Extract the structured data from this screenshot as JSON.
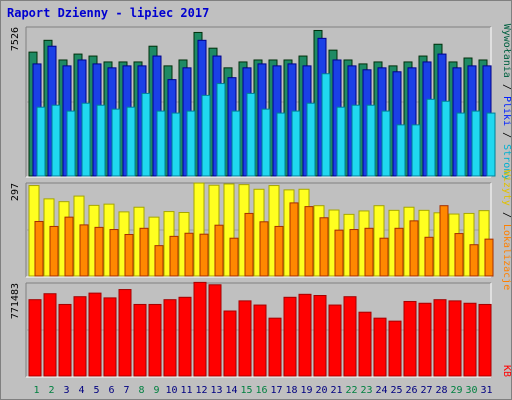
{
  "title": "Raport Dzienny -  lipiec 2017",
  "right_legend": {
    "top": {
      "parts": [
        {
          "text": "Wywołania",
          "color": "#006040"
        },
        {
          "text": " / ",
          "color": "#000000"
        },
        {
          "text": "Pliki",
          "color": "#0020ff"
        },
        {
          "text": " / ",
          "color": "#000000"
        },
        {
          "text": "Strony",
          "color": "#00b0d0"
        }
      ]
    },
    "middle": {
      "parts": [
        {
          "text": "Wizyty",
          "color": "#e0c000"
        },
        {
          "text": " / ",
          "color": "#000000"
        },
        {
          "text": "Lokalizacje",
          "color": "#ff8000"
        }
      ]
    },
    "bottom": {
      "parts": [
        {
          "text": "KB",
          "color": "#ff0000"
        }
      ]
    }
  },
  "chart_data": [
    {
      "type": "bar",
      "name": "top",
      "ymax_label": "7526",
      "ylim": [
        0,
        7526
      ],
      "categories": [
        "1",
        "2",
        "3",
        "4",
        "5",
        "6",
        "7",
        "8",
        "9",
        "10",
        "11",
        "12",
        "13",
        "14",
        "15",
        "16",
        "17",
        "18",
        "19",
        "20",
        "21",
        "22",
        "23",
        "24",
        "25",
        "26",
        "27",
        "28",
        "29",
        "30",
        "31"
      ],
      "series": [
        {
          "name": "Wywołania",
          "color": "#1e8a64",
          "values": [
            6300,
            6900,
            5900,
            6200,
            6100,
            5800,
            5800,
            5800,
            6600,
            5600,
            5900,
            7300,
            6500,
            5500,
            5800,
            5900,
            5900,
            5900,
            6100,
            7400,
            6400,
            5900,
            5700,
            5800,
            5600,
            5800,
            6100,
            6700,
            5800,
            6000,
            5900
          ]
        },
        {
          "name": "Pliki",
          "color": "#1a40e6",
          "values": [
            5700,
            6600,
            5600,
            5900,
            5700,
            5500,
            5600,
            5600,
            6100,
            4900,
            5500,
            6900,
            6100,
            5000,
            5500,
            5700,
            5600,
            5700,
            5600,
            7000,
            5900,
            5600,
            5400,
            5500,
            5300,
            5500,
            5800,
            6200,
            5500,
            5600,
            5600
          ]
        },
        {
          "name": "Strony",
          "color": "#20d8f0",
          "values": [
            3500,
            3600,
            3300,
            3700,
            3600,
            3400,
            3500,
            4200,
            3300,
            3200,
            3300,
            4100,
            4700,
            3300,
            4200,
            3400,
            3200,
            3300,
            3700,
            5200,
            3500,
            3600,
            3600,
            3300,
            2600,
            2600,
            3900,
            3800,
            3200,
            3300,
            3200
          ]
        }
      ]
    },
    {
      "type": "bar",
      "name": "middle",
      "ymax_label": "297",
      "ylim": [
        0,
        297
      ],
      "categories": [
        "1",
        "2",
        "3",
        "4",
        "5",
        "6",
        "7",
        "8",
        "9",
        "10",
        "11",
        "12",
        "13",
        "14",
        "15",
        "16",
        "17",
        "18",
        "19",
        "20",
        "21",
        "22",
        "23",
        "24",
        "25",
        "26",
        "27",
        "28",
        "29",
        "30",
        "31"
      ],
      "series": [
        {
          "name": "Wizyty",
          "color": "#ffff20",
          "values": [
            292,
            249,
            240,
            258,
            228,
            232,
            207,
            222,
            190,
            208,
            205,
            300,
            293,
            297,
            295,
            280,
            292,
            278,
            280,
            227,
            213,
            199,
            210,
            227,
            212,
            222,
            212,
            204,
            200,
            202,
            211
          ]
        },
        {
          "name": "Lokalizacje",
          "color": "#ff8800",
          "values": [
            176,
            160,
            190,
            165,
            157,
            150,
            134,
            154,
            98,
            128,
            138,
            135,
            164,
            122,
            202,
            175,
            160,
            236,
            224,
            188,
            148,
            150,
            154,
            122,
            154,
            178,
            125,
            227,
            137,
            101,
            119
          ]
        }
      ]
    },
    {
      "type": "bar",
      "name": "bottom",
      "ymax_label": "771483",
      "ylim": [
        0,
        771483
      ],
      "categories": [
        "1",
        "2",
        "3",
        "4",
        "5",
        "6",
        "7",
        "8",
        "9",
        "10",
        "11",
        "12",
        "13",
        "14",
        "15",
        "16",
        "17",
        "18",
        "19",
        "20",
        "21",
        "22",
        "23",
        "24",
        "25",
        "26",
        "27",
        "28",
        "29",
        "30",
        "31"
      ],
      "series": [
        {
          "name": "KB",
          "color": "#ff0000",
          "values": [
            640000,
            690000,
            600000,
            665000,
            695000,
            655000,
            725000,
            600000,
            600000,
            640000,
            660000,
            785000,
            765000,
            545000,
            630000,
            595000,
            485000,
            660000,
            685000,
            675000,
            595000,
            665000,
            535000,
            485000,
            460000,
            625000,
            610000,
            640000,
            630000,
            610000,
            600000
          ]
        }
      ]
    }
  ],
  "x_labels": [
    {
      "text": "1",
      "color": "#008040"
    },
    {
      "text": "2",
      "color": "#008040"
    },
    {
      "text": "3",
      "color": "#000080"
    },
    {
      "text": "4",
      "color": "#000080"
    },
    {
      "text": "5",
      "color": "#000080"
    },
    {
      "text": "6",
      "color": "#000080"
    },
    {
      "text": "7",
      "color": "#000080"
    },
    {
      "text": "8",
      "color": "#008040"
    },
    {
      "text": "9",
      "color": "#008040"
    },
    {
      "text": "10",
      "color": "#000080"
    },
    {
      "text": "11",
      "color": "#000080"
    },
    {
      "text": "12",
      "color": "#000080"
    },
    {
      "text": "13",
      "color": "#000080"
    },
    {
      "text": "14",
      "color": "#000080"
    },
    {
      "text": "15",
      "color": "#008040"
    },
    {
      "text": "16",
      "color": "#008040"
    },
    {
      "text": "17",
      "color": "#000080"
    },
    {
      "text": "18",
      "color": "#000080"
    },
    {
      "text": "19",
      "color": "#000080"
    },
    {
      "text": "20",
      "color": "#000080"
    },
    {
      "text": "21",
      "color": "#000080"
    },
    {
      "text": "22",
      "color": "#008040"
    },
    {
      "text": "23",
      "color": "#008040"
    },
    {
      "text": "24",
      "color": "#000080"
    },
    {
      "text": "25",
      "color": "#000080"
    },
    {
      "text": "26",
      "color": "#000080"
    },
    {
      "text": "27",
      "color": "#000080"
    },
    {
      "text": "28",
      "color": "#000080"
    },
    {
      "text": "29",
      "color": "#008040"
    },
    {
      "text": "30",
      "color": "#008040"
    },
    {
      "text": "31",
      "color": "#000080"
    }
  ]
}
